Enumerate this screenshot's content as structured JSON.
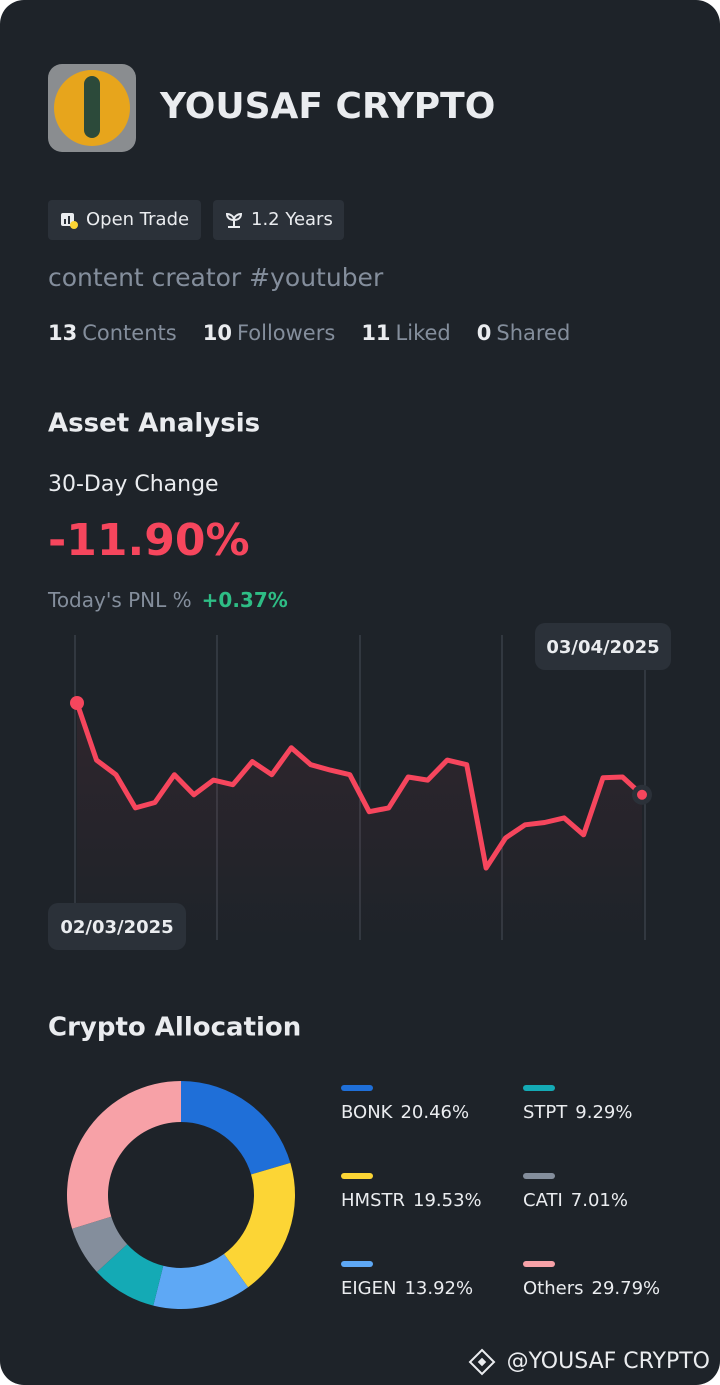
{
  "profile": {
    "name": "YOUSAF CRYPTO",
    "badges": [
      "Open Trade",
      "1.2 Years"
    ],
    "bio": "content creator #youtuber",
    "stats": [
      {
        "value": 13,
        "label": "Contents"
      },
      {
        "value": 10,
        "label": "Followers"
      },
      {
        "value": 11,
        "label": "Liked"
      },
      {
        "value": 0,
        "label": "Shared"
      }
    ]
  },
  "summary": {
    "change_title": "30-Day Change",
    "change": "-11.90%",
    "pnl_title": "Today's PNL %",
    "pnl": "+0.37%"
  },
  "chart_data": [
    {
      "type": "line",
      "title": "Asset Analysis",
      "start_date": "02/03/2025",
      "end_date": "03/04/2025",
      "color": "#f6465d",
      "values": [
        0,
        -7.4,
        -9.3,
        -13.6,
        -12.9,
        -9.3,
        -11.9,
        -10.0,
        -10.6,
        -7.6,
        -9.3,
        -5.8,
        -8.0,
        -8.7,
        -9.3,
        -14.1,
        -13.6,
        -9.6,
        -10.0,
        -7.4,
        -8.0,
        -21.4,
        -17.5,
        -15.8,
        -15.5,
        -14.9,
        -17.1,
        -9.7,
        -9.6,
        -11.9
      ]
    },
    {
      "type": "pie",
      "title": "Crypto Allocation",
      "categories": [
        "BONK",
        "HMSTR",
        "EIGEN",
        "STPT",
        "CATI",
        "Others"
      ],
      "values": [
        20.46,
        19.53,
        13.92,
        9.29,
        7.01,
        29.79
      ],
      "value_labels": [
        "20.46%",
        "19.53%",
        "13.92%",
        "9.29%",
        "7.01%",
        "29.79%"
      ],
      "colors": [
        "#1f6fd8",
        "#fcd535",
        "#5ea8f5",
        "#14aab5",
        "#848e9c",
        "#f7a1a7"
      ]
    }
  ],
  "footer": "@YOUSAF CRYPTO"
}
